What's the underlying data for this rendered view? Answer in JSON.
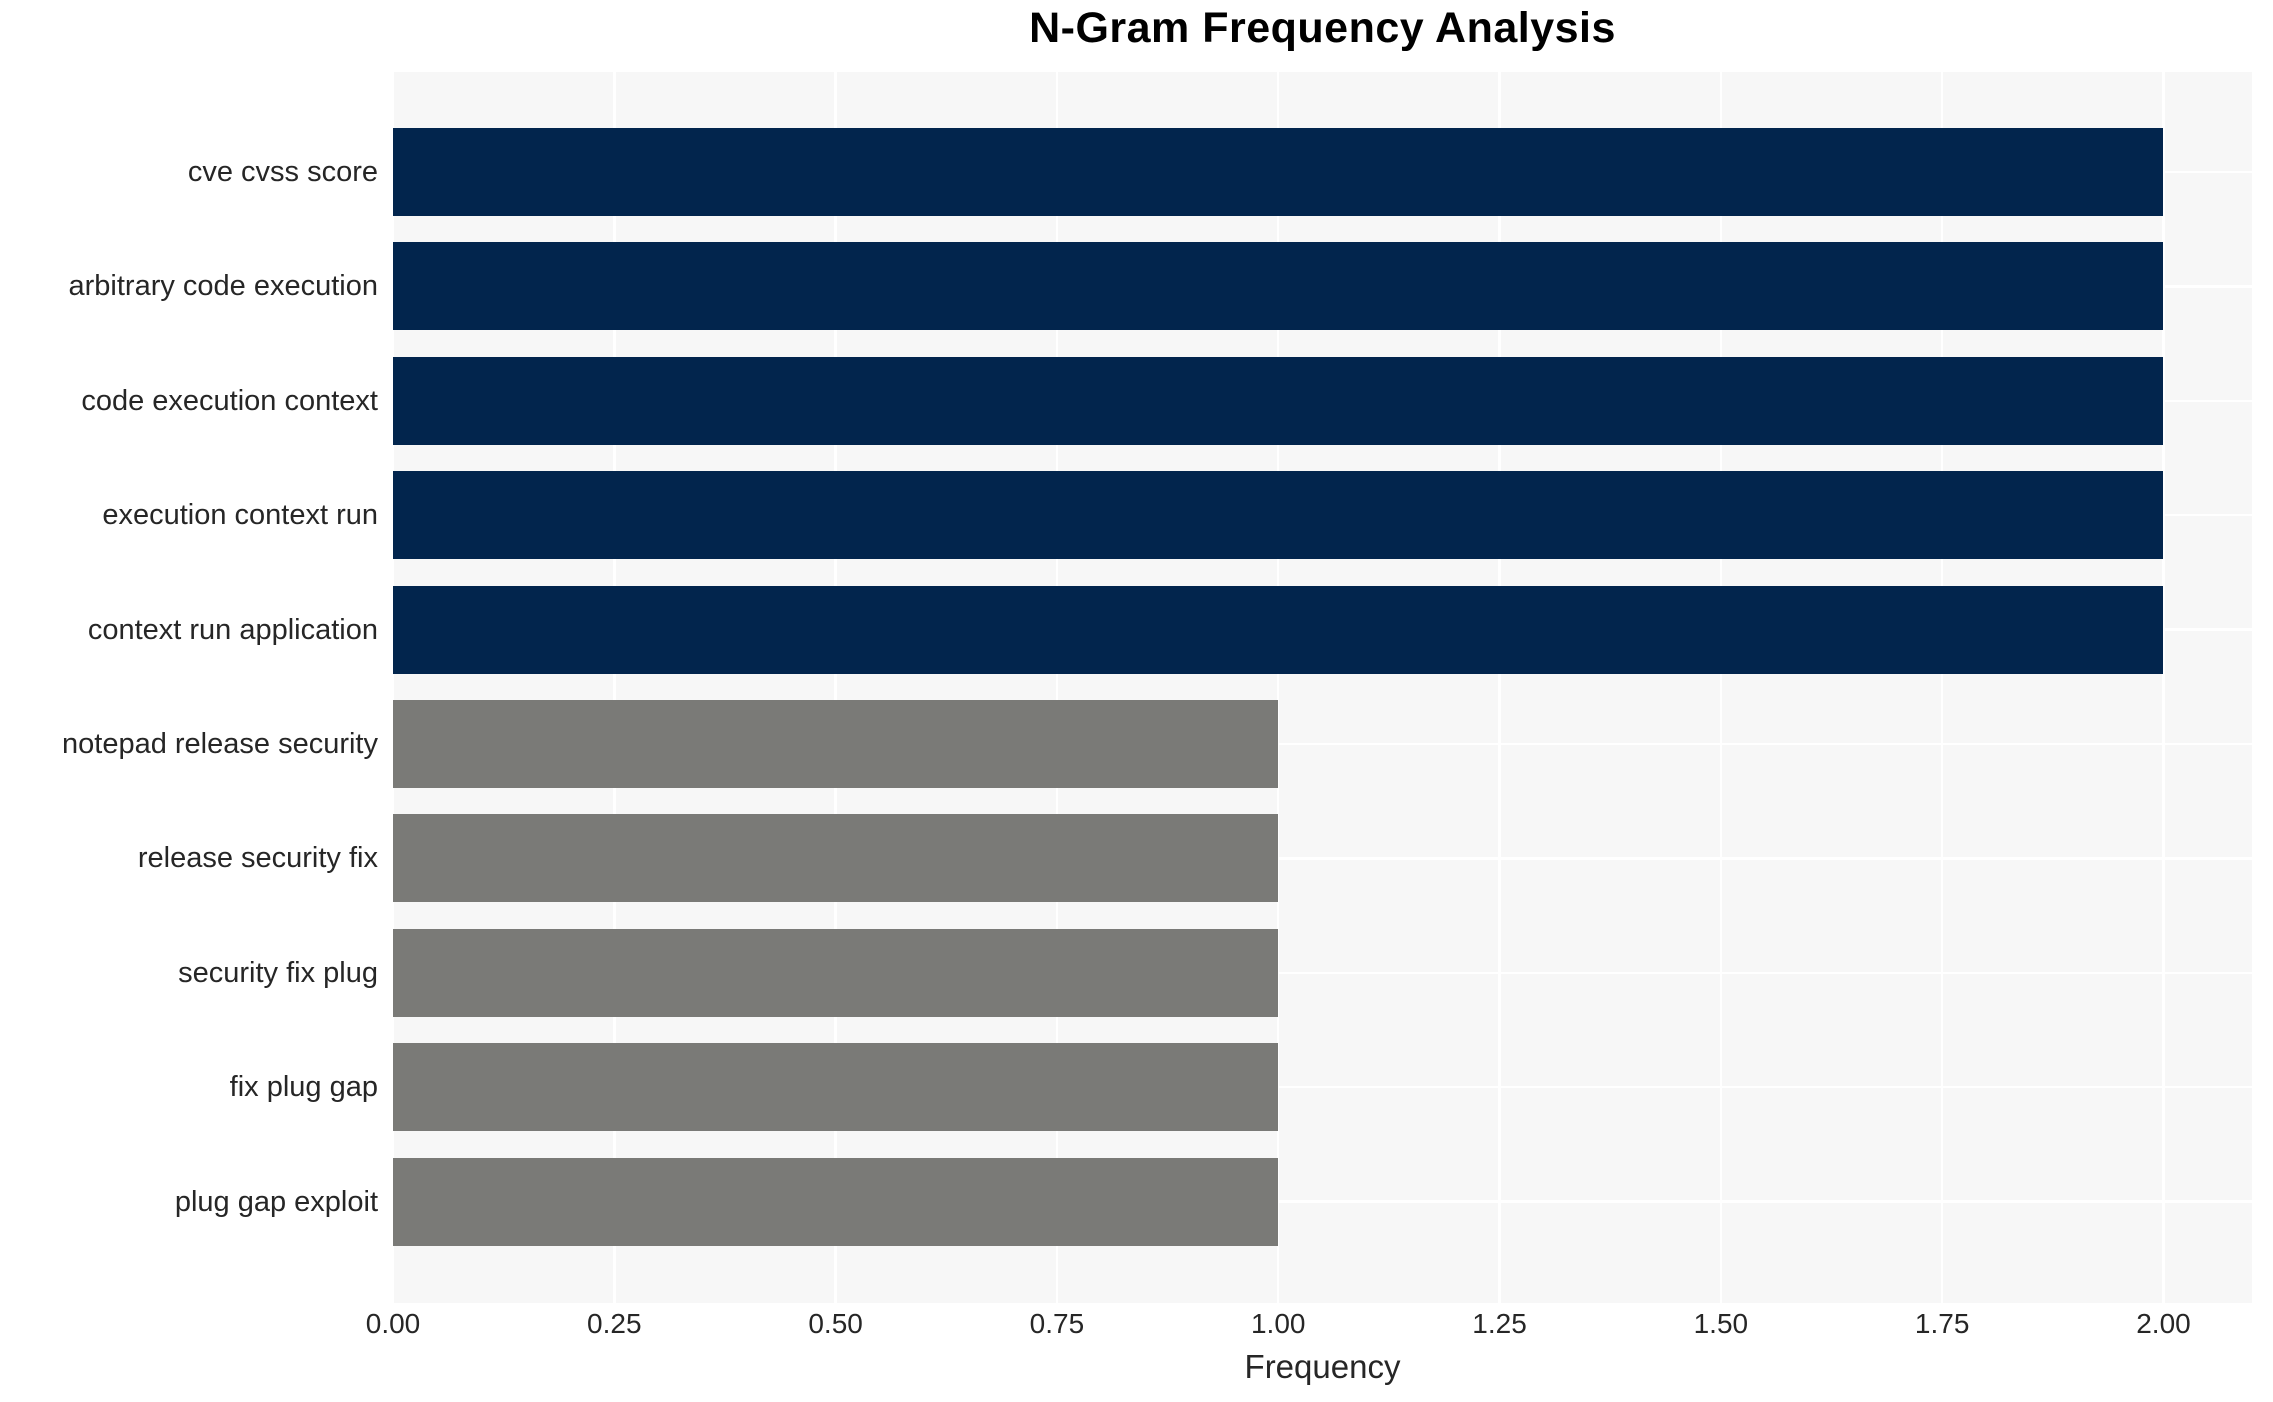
{
  "chart_data": {
    "type": "bar",
    "orientation": "horizontal",
    "title": "N-Gram Frequency Analysis",
    "xlabel": "Frequency",
    "categories": [
      "cve cvss score",
      "arbitrary code execution",
      "code execution context",
      "execution context run",
      "context run application",
      "notepad release security",
      "release security fix",
      "security fix plug",
      "fix plug gap",
      "plug gap exploit"
    ],
    "values": [
      2,
      2,
      2,
      2,
      2,
      1,
      1,
      1,
      1,
      1
    ],
    "bar_colors": [
      "#02254d",
      "#02254d",
      "#02254d",
      "#02254d",
      "#02254d",
      "#7a7a77",
      "#7a7a77",
      "#7a7a77",
      "#7a7a77",
      "#7a7a77"
    ],
    "xlim": [
      0,
      2.1
    ],
    "xticks": [
      0,
      0.25,
      0.5,
      0.75,
      1.0,
      1.25,
      1.5,
      1.75,
      2.0
    ],
    "xtick_labels": [
      "0.00",
      "0.25",
      "0.50",
      "0.75",
      "1.00",
      "1.25",
      "1.50",
      "1.75",
      "2.00"
    ],
    "grid": true,
    "legend": "none",
    "colors": {
      "plot_background": "#f7f7f7",
      "gridline": "#ffffff",
      "navy_accent": "#02254d",
      "gray_accent": "#7a7a77",
      "title_text": "#000000",
      "label_text": "#262626"
    }
  }
}
